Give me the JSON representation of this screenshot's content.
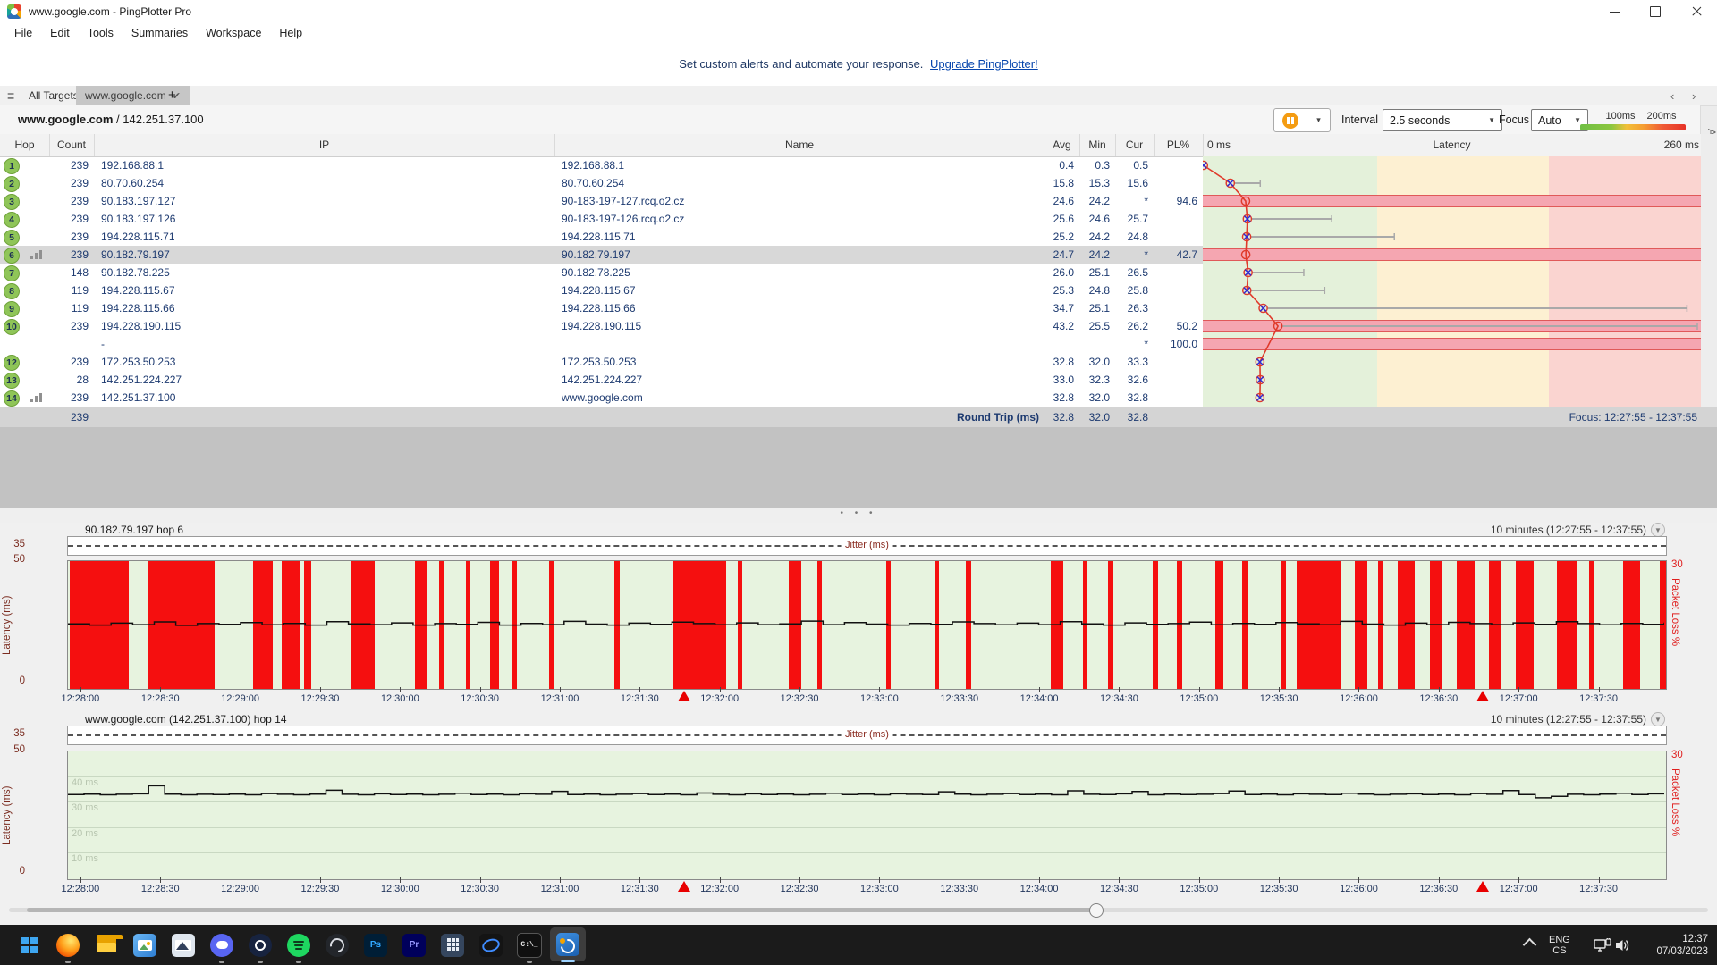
{
  "window": {
    "title": "www.google.com - PingPlotter Pro"
  },
  "menu": [
    "File",
    "Edit",
    "Tools",
    "Summaries",
    "Workspace",
    "Help"
  ],
  "banner": {
    "text": "Set custom alerts and automate your response.",
    "link": "Upgrade PingPlotter!"
  },
  "icons": {
    "hamburger": "≡",
    "tab_close": "×",
    "tab_check": "✔",
    "new_tab": "+",
    "nav_arrows": "‹ ›",
    "dropdown": "▼",
    "chevron_small": "▾",
    "splitter_dots": "• • •"
  },
  "tabs": {
    "all_targets": "All Targets",
    "target": "www.google.com"
  },
  "target_header": {
    "host": "www.google.com",
    "separator": " / ",
    "ip": "142.251.37.100",
    "interval_label": "Interval",
    "interval_value": "2.5 seconds",
    "focus_label": "Focus",
    "focus_value": "Auto",
    "scale_100": "100ms",
    "scale_200": "200ms",
    "alerts_label": "Alerts"
  },
  "colors": {
    "accent_red": "#e03a2b",
    "loss_band": "#f5a6b1",
    "loss_band_edge": "#e05959",
    "zone_green": "#e4f1da",
    "zone_amber": "#fdf0d2",
    "zone_red": "#fad4d0",
    "bar_red": "#f50f0f",
    "hop_green": "#8fc558",
    "value_navy": "#1d3a70",
    "marker_blue": "#2c2cd6",
    "link_blue": "#0645ad"
  },
  "table": {
    "headers": {
      "hop": "Hop",
      "count": "Count",
      "ip": "IP",
      "name": "Name",
      "avg": "Avg",
      "min": "Min",
      "cur": "Cur",
      "pl": "PL%",
      "lat_min": "0 ms",
      "lat_title": "Latency",
      "lat_max": "260 ms"
    },
    "axis_max_ms": 260,
    "zone1_ms": 100,
    "zone2_ms": 200,
    "rows": [
      {
        "hop": "1",
        "count": "239",
        "ip": "192.168.88.1",
        "name": "192.168.88.1",
        "avg": "0.4",
        "min": "0.3",
        "cur": "0.5",
        "pl": "",
        "avg_ms": 0.4,
        "max_ms": null,
        "marker": "x",
        "selected": false,
        "chart_icon": false,
        "loss_band": false
      },
      {
        "hop": "2",
        "count": "239",
        "ip": "80.70.60.254",
        "name": "80.70.60.254",
        "avg": "15.8",
        "min": "15.3",
        "cur": "15.6",
        "pl": "",
        "avg_ms": 15.8,
        "max_ms": 33,
        "marker": "x",
        "selected": false,
        "chart_icon": false,
        "loss_band": false
      },
      {
        "hop": "3",
        "count": "239",
        "ip": "90.183.197.127",
        "name": "90-183-197-127.rcq.o2.cz",
        "avg": "24.6",
        "min": "24.2",
        "cur": "*",
        "pl": "94.6",
        "avg_ms": 24.6,
        "max_ms": null,
        "marker": "o",
        "selected": false,
        "chart_icon": false,
        "loss_band": true
      },
      {
        "hop": "4",
        "count": "239",
        "ip": "90.183.197.126",
        "name": "90-183-197-126.rcq.o2.cz",
        "avg": "25.6",
        "min": "24.6",
        "cur": "25.7",
        "pl": "",
        "avg_ms": 25.6,
        "max_ms": 74,
        "marker": "x",
        "selected": false,
        "chart_icon": false,
        "loss_band": false
      },
      {
        "hop": "5",
        "count": "239",
        "ip": "194.228.115.71",
        "name": "194.228.115.71",
        "avg": "25.2",
        "min": "24.2",
        "cur": "24.8",
        "pl": "",
        "avg_ms": 25.2,
        "max_ms": 110,
        "marker": "x",
        "selected": false,
        "chart_icon": false,
        "loss_band": false
      },
      {
        "hop": "6",
        "count": "239",
        "ip": "90.182.79.197",
        "name": "90.182.79.197",
        "avg": "24.7",
        "min": "24.2",
        "cur": "*",
        "pl": "42.7",
        "avg_ms": 24.7,
        "max_ms": null,
        "marker": "o",
        "selected": true,
        "chart_icon": true,
        "loss_band": true
      },
      {
        "hop": "7",
        "count": "148",
        "ip": "90.182.78.225",
        "name": "90.182.78.225",
        "avg": "26.0",
        "min": "25.1",
        "cur": "26.5",
        "pl": "",
        "avg_ms": 26.0,
        "max_ms": 58,
        "marker": "x",
        "selected": false,
        "chart_icon": false,
        "loss_band": false
      },
      {
        "hop": "8",
        "count": "119",
        "ip": "194.228.115.67",
        "name": "194.228.115.67",
        "avg": "25.3",
        "min": "24.8",
        "cur": "25.8",
        "pl": "",
        "avg_ms": 25.3,
        "max_ms": 70,
        "marker": "x",
        "selected": false,
        "chart_icon": false,
        "loss_band": false
      },
      {
        "hop": "9",
        "count": "119",
        "ip": "194.228.115.66",
        "name": "194.228.115.66",
        "avg": "34.7",
        "min": "25.1",
        "cur": "26.3",
        "pl": "",
        "avg_ms": 34.7,
        "max_ms": 278,
        "marker": "x",
        "selected": false,
        "chart_icon": false,
        "loss_band": false
      },
      {
        "hop": "10",
        "count": "239",
        "ip": "194.228.190.115",
        "name": "194.228.190.115",
        "avg": "43.2",
        "min": "25.5",
        "cur": "26.2",
        "pl": "50.2",
        "avg_ms": 43.2,
        "max_ms": 288,
        "marker": "o",
        "selected": false,
        "chart_icon": false,
        "loss_band": true
      },
      {
        "hop": "",
        "count": "",
        "ip": "-",
        "name": "",
        "avg": "",
        "min": "",
        "cur": "*",
        "pl": "100.0",
        "avg_ms": null,
        "max_ms": null,
        "marker": "none",
        "selected": false,
        "chart_icon": false,
        "loss_band": true
      },
      {
        "hop": "12",
        "count": "239",
        "ip": "172.253.50.253",
        "name": "172.253.50.253",
        "avg": "32.8",
        "min": "32.0",
        "cur": "33.3",
        "pl": "",
        "avg_ms": 32.8,
        "max_ms": null,
        "marker": "x",
        "selected": false,
        "chart_icon": false,
        "loss_band": false
      },
      {
        "hop": "13",
        "count": "28",
        "ip": "142.251.224.227",
        "name": "142.251.224.227",
        "avg": "33.0",
        "min": "32.3",
        "cur": "32.6",
        "pl": "",
        "avg_ms": 33.0,
        "max_ms": null,
        "marker": "x",
        "selected": false,
        "chart_icon": false,
        "loss_band": false
      },
      {
        "hop": "14",
        "count": "239",
        "ip": "142.251.37.100",
        "name": "www.google.com",
        "avg": "32.8",
        "min": "32.0",
        "cur": "32.8",
        "pl": "",
        "avg_ms": 32.8,
        "max_ms": null,
        "marker": "x",
        "selected": false,
        "chart_icon": true,
        "loss_band": false
      }
    ],
    "roundtrip": {
      "count": "239",
      "label": "Round Trip (ms)",
      "avg": "32.8",
      "min": "32.0",
      "cur": "32.8",
      "focus": "Focus: 12:27:55 - 12:37:55"
    }
  },
  "chart_data": [
    {
      "type": "area",
      "title": "90.182.79.197 hop 6",
      "range_label": "10 minutes (12:27:55 - 12:37:55)",
      "jitter_label": "Jitter (ms)",
      "jitter_max": "35",
      "y_top": "50",
      "y_bottom": "0",
      "pl_top": "30",
      "y_axis_label": "Latency (ms)",
      "pl_axis_label": "Packet Loss %",
      "ylim": [
        0,
        50
      ],
      "x_labels": [
        "12:28:00",
        "12:28:30",
        "12:29:00",
        "12:29:30",
        "12:30:00",
        "12:30:30",
        "12:31:00",
        "12:31:30",
        "12:32:00",
        "12:32:30",
        "12:33:00",
        "12:33:30",
        "12:34:00",
        "12:34:30",
        "12:35:00",
        "12:35:30",
        "12:36:00",
        "12:36:30",
        "12:37:00",
        "12:37:30"
      ],
      "window_seconds": 600,
      "first_label_offset_s": 5,
      "label_step_s": 30,
      "marker_pcts": [
        38.6,
        88.6
      ],
      "grid": [],
      "loss_segments": [
        [
          0.1,
          3.7
        ],
        [
          5.0,
          4.2
        ],
        [
          11.6,
          1.2
        ],
        [
          13.4,
          1.1
        ],
        [
          14.8,
          0.4
        ],
        [
          17.7,
          1.5
        ],
        [
          21.7,
          0.8
        ],
        [
          23.2,
          0.3
        ],
        [
          24.9,
          0.3
        ],
        [
          26.4,
          0.6
        ],
        [
          27.8,
          0.3
        ],
        [
          30.1,
          0.3
        ],
        [
          34.2,
          0.3
        ],
        [
          37.9,
          3.3
        ],
        [
          41.9,
          0.3
        ],
        [
          45.1,
          0.8
        ],
        [
          46.9,
          0.3
        ],
        [
          51.2,
          0.3
        ],
        [
          54.2,
          0.3
        ],
        [
          56.2,
          0.3
        ],
        [
          61.5,
          0.8
        ],
        [
          63.5,
          0.3
        ],
        [
          65.1,
          0.3
        ],
        [
          67.9,
          0.3
        ],
        [
          69.4,
          0.3
        ],
        [
          71.8,
          0.5
        ],
        [
          73.5,
          0.3
        ],
        [
          75.9,
          0.3
        ],
        [
          76.9,
          2.8
        ],
        [
          80.5,
          0.8
        ],
        [
          82.0,
          0.3
        ],
        [
          83.2,
          1.1
        ],
        [
          85.2,
          0.8
        ],
        [
          86.9,
          1.1
        ],
        [
          88.9,
          0.8
        ],
        [
          90.6,
          1.1
        ],
        [
          93.2,
          1.2
        ],
        [
          95.2,
          0.3
        ],
        [
          97.3,
          1.1
        ],
        [
          99.6,
          0.4
        ]
      ],
      "latency_series": [
        25.1,
        24.6,
        25.4,
        24.8,
        25.9,
        24.5,
        25.2,
        24.9,
        25.6,
        24.7,
        25.3,
        24.6,
        26.0,
        25.1,
        24.8,
        25.5,
        24.6,
        25.2,
        24.9,
        25.7,
        24.6,
        25.3,
        24.8,
        26.1,
        25.0,
        24.6,
        25.4,
        24.9,
        25.8,
        25.2,
        24.7,
        25.5,
        24.8,
        25.1,
        26.2,
        24.8,
        25.6,
        25.0,
        24.6,
        25.3,
        24.9,
        25.9,
        25.2,
        24.7,
        25.4,
        24.8,
        26.0,
        25.1,
        24.6,
        25.5,
        24.9,
        25.2,
        25.8,
        24.7,
        25.3,
        24.9,
        25.6,
        25.1,
        24.7,
        26.1,
        25.0,
        24.6,
        25.4,
        24.8,
        25.7,
        25.2,
        24.8,
        25.5,
        24.9,
        26.0,
        25.2,
        24.7,
        25.3,
        24.9,
        25.6
      ]
    },
    {
      "type": "area",
      "title": "www.google.com (142.251.37.100) hop 14",
      "range_label": "10 minutes (12:27:55 - 12:37:55)",
      "jitter_label": "Jitter (ms)",
      "jitter_max": "35",
      "y_top": "50",
      "y_bottom": "0",
      "pl_top": "30",
      "y_axis_label": "Latency (ms)",
      "pl_axis_label": "Packet Loss %",
      "ylim": [
        0,
        50
      ],
      "x_labels": [
        "12:28:00",
        "12:28:30",
        "12:29:00",
        "12:29:30",
        "12:30:00",
        "12:30:30",
        "12:31:00",
        "12:31:30",
        "12:32:00",
        "12:32:30",
        "12:33:00",
        "12:33:30",
        "12:34:00",
        "12:34:30",
        "12:35:00",
        "12:35:30",
        "12:36:00",
        "12:36:30",
        "12:37:00",
        "12:37:30"
      ],
      "window_seconds": 600,
      "first_label_offset_s": 5,
      "label_step_s": 30,
      "marker_pcts": [
        38.6,
        88.6
      ],
      "grid": [
        {
          "v": 40,
          "label": "40 ms"
        },
        {
          "v": 30,
          "label": "30 ms"
        },
        {
          "v": 20,
          "label": "20 ms"
        },
        {
          "v": 10,
          "label": "10 ms"
        }
      ],
      "loss_segments": [],
      "latency_series": [
        32.9,
        33.1,
        32.8,
        33.0,
        33.2,
        36.4,
        33.1,
        32.8,
        33.0,
        32.9,
        33.1,
        32.8,
        33.3,
        33.0,
        32.8,
        33.1,
        34.6,
        33.0,
        32.8,
        33.2,
        32.9,
        33.1,
        32.8,
        33.0,
        33.4,
        32.9,
        33.1,
        32.8,
        33.2,
        33.0,
        34.2,
        32.9,
        33.1,
        32.8,
        33.0,
        33.3,
        32.9,
        33.1,
        32.8,
        33.5,
        33.0,
        32.8,
        33.2,
        32.9,
        33.1,
        32.8,
        33.0,
        33.4,
        32.9,
        33.1,
        32.8,
        33.2,
        33.0,
        32.9,
        34.0,
        33.1,
        32.8,
        33.0,
        33.3,
        32.9,
        33.1,
        32.8,
        34.4,
        33.0,
        32.9,
        33.2,
        34.1,
        32.8,
        33.1,
        32.9,
        33.0,
        33.3,
        34.3,
        32.9,
        33.1,
        32.8,
        33.2,
        33.0,
        32.9,
        33.4,
        33.1,
        32.8,
        33.0,
        33.2,
        32.9,
        33.1,
        32.8,
        33.3,
        33.0,
        34.5,
        32.9,
        31.6,
        32.2,
        33.0,
        32.8,
        33.1,
        33.4,
        32.9,
        33.2,
        33.0
      ]
    }
  ],
  "taskbar": {
    "tray": {
      "lang1": "ENG",
      "lang2": "CS",
      "time": "12:37",
      "date": "07/03/2023"
    },
    "ps_glyph": "Ps",
    "pr_glyph": "Pr",
    "cmd_glyph": "C:\\_",
    "icons": [
      "start",
      "firefox",
      "file-explorer",
      "photos-app",
      "media-viewer",
      "discord",
      "steam",
      "spotify",
      "obs",
      "photoshop",
      "premiere",
      "calculator",
      "oval-app",
      "terminal",
      "pingplotter"
    ],
    "running_dots": [
      "firefox",
      "discord",
      "steam",
      "spotify",
      "terminal"
    ],
    "active": "pingplotter"
  }
}
